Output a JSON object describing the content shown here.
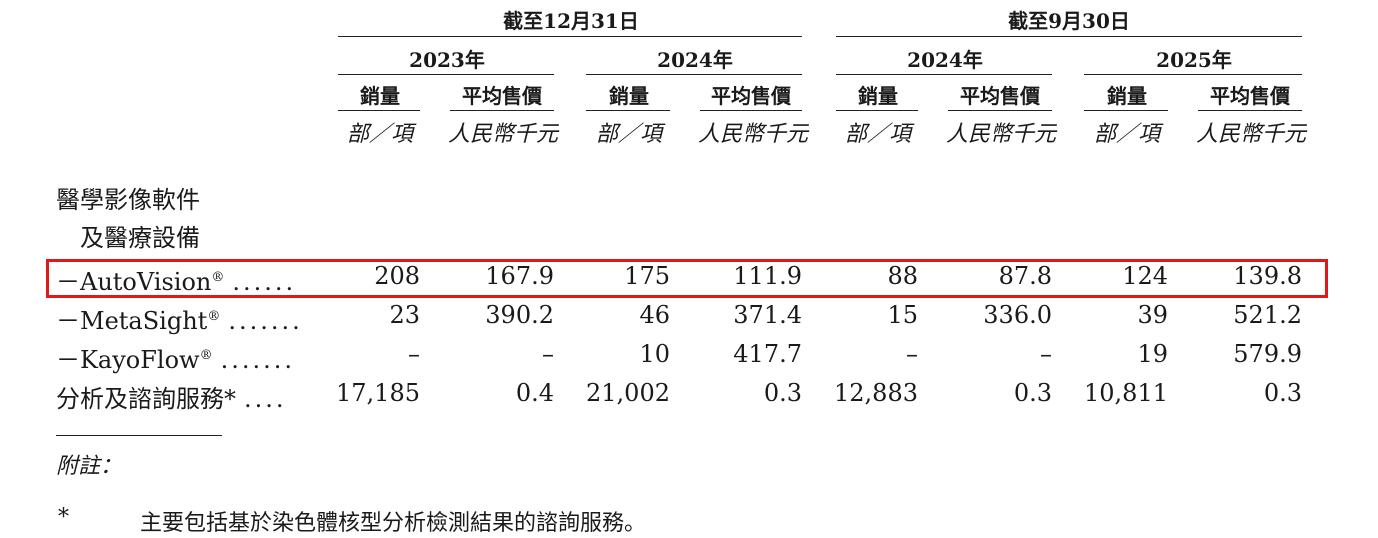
{
  "headers": {
    "period_1": "截至12月31日",
    "period_2": "截至9月30日",
    "years": [
      "2023年",
      "2024年",
      "2024年",
      "2025年"
    ],
    "col_sales": "銷量",
    "col_price": "平均售價",
    "unit_sales": "部／項",
    "unit_price": "人民幣千元"
  },
  "category": {
    "line1": "醫學影像軟件",
    "line2": "及醫療設備"
  },
  "rows": [
    {
      "label": "－AutoVision",
      "mark": "®",
      "dots": "......",
      "values": [
        "208",
        "167.9",
        "175",
        "111.9",
        "88",
        "87.8",
        "124",
        "139.8"
      ]
    },
    {
      "label": "－MetaSight",
      "mark": "®",
      "dots": ".......",
      "values": [
        "23",
        "390.2",
        "46",
        "371.4",
        "15",
        "336.0",
        "39",
        "521.2"
      ]
    },
    {
      "label": "－KayoFlow",
      "mark": "®",
      "dots": ".......",
      "values": [
        "–",
        "–",
        "10",
        "417.7",
        "–",
        "–",
        "19",
        "579.9"
      ]
    },
    {
      "label": "分析及諮詢服務*",
      "mark": "",
      "dots": "....",
      "values": [
        "17,185",
        "0.4",
        "21,002",
        "0.3",
        "12,883",
        "0.3",
        "10,811",
        "0.3"
      ]
    }
  ],
  "notes": {
    "title": "附註：",
    "star": "*",
    "text": "主要包括基於染色體核型分析檢測結果的諮詢服務。"
  },
  "colors": {
    "highlight": "#e01818",
    "text": "#1a1a1a"
  }
}
